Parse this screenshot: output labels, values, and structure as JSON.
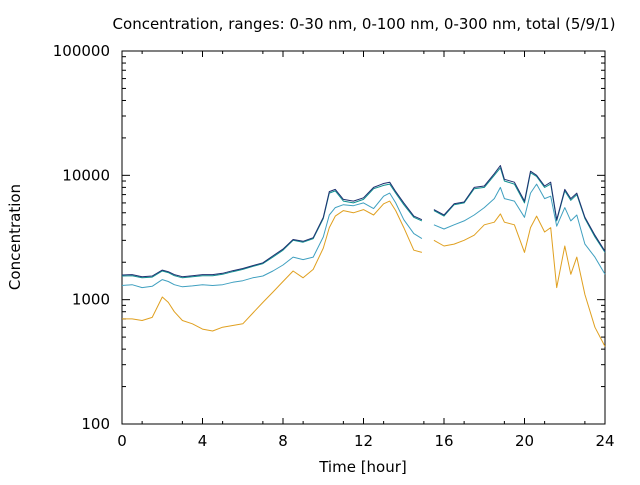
{
  "chart_data": {
    "type": "line",
    "title": "Concentration, ranges: 0-30 nm, 0-100 nm, 0-300 nm, total (5/9/1)",
    "xlabel": "Time [hour]",
    "ylabel": "Concentration",
    "xlim": [
      0,
      24
    ],
    "ylim": [
      100,
      100000
    ],
    "yscale": "log",
    "x_ticks": [
      0,
      4,
      8,
      12,
      16,
      20,
      24
    ],
    "x_tick_labels": [
      "0",
      "4",
      "8",
      "12",
      "16",
      "20",
      "24"
    ],
    "y_ticks": [
      100,
      1000,
      10000,
      100000
    ],
    "y_tick_labels": [
      "100",
      "1000",
      "10000",
      "100000"
    ],
    "grid": false,
    "legend": "none",
    "x": [
      0,
      0.5,
      1,
      1.5,
      2,
      2.3,
      2.6,
      3,
      3.5,
      4,
      4.5,
      5,
      5.5,
      6,
      6.5,
      7,
      7.5,
      8,
      8.5,
      9,
      9.5,
      10,
      10.3,
      10.6,
      11,
      11.5,
      12,
      12.5,
      13,
      13.3,
      13.6,
      14,
      14.5,
      14.9,
      15.0,
      15.1,
      15.5,
      16,
      16.5,
      17,
      17.5,
      18,
      18.5,
      18.8,
      19,
      19.5,
      20,
      20.3,
      20.6,
      21,
      21.3,
      21.6,
      22,
      22.3,
      22.6,
      23,
      23.5,
      24
    ],
    "series": [
      {
        "color": "#e0a020",
        "values": [
          700,
          700,
          680,
          720,
          1050,
          950,
          800,
          680,
          640,
          580,
          560,
          600,
          620,
          640,
          780,
          950,
          1150,
          1400,
          1700,
          1500,
          1750,
          2600,
          3800,
          4700,
          5200,
          5000,
          5300,
          4800,
          5900,
          6200,
          5200,
          3800,
          2500,
          2400,
          null,
          null,
          3000,
          2700,
          2800,
          3000,
          3300,
          4000,
          4200,
          4900,
          4200,
          4000,
          2400,
          3800,
          4700,
          3500,
          3800,
          1250,
          2700,
          1600,
          2200,
          1100,
          600,
          420
        ]
      },
      {
        "color": "#40a0c0",
        "values": [
          1300,
          1320,
          1250,
          1280,
          1450,
          1400,
          1320,
          1270,
          1290,
          1320,
          1300,
          1320,
          1380,
          1420,
          1500,
          1550,
          1700,
          1900,
          2200,
          2100,
          2200,
          3200,
          4800,
          5500,
          5800,
          5700,
          6000,
          5400,
          6800,
          7200,
          6000,
          4400,
          3400,
          3100,
          null,
          null,
          4000,
          3700,
          4000,
          4300,
          4800,
          5500,
          6500,
          8000,
          6500,
          6200,
          4600,
          7200,
          8500,
          6500,
          6800,
          3900,
          5500,
          4300,
          4800,
          2800,
          2200,
          1600
        ]
      },
      {
        "color": "#109090",
        "values": [
          1550,
          1560,
          1500,
          1520,
          1700,
          1650,
          1560,
          1500,
          1530,
          1560,
          1560,
          1600,
          1680,
          1750,
          1850,
          1950,
          2200,
          2500,
          3000,
          2900,
          3100,
          4500,
          7200,
          7500,
          6200,
          6000,
          6400,
          7800,
          8300,
          8500,
          7200,
          5800,
          4600,
          4300,
          null,
          null,
          5200,
          4700,
          5800,
          6000,
          7800,
          8000,
          10000,
          11500,
          9000,
          8500,
          6000,
          10500,
          9800,
          8000,
          8500,
          4300,
          7500,
          6300,
          7000,
          4500,
          3200,
          2400
        ]
      },
      {
        "color": "#203070",
        "values": [
          1580,
          1590,
          1530,
          1550,
          1730,
          1680,
          1590,
          1530,
          1560,
          1590,
          1590,
          1630,
          1710,
          1780,
          1880,
          1980,
          2250,
          2550,
          3050,
          2950,
          3150,
          4600,
          7400,
          7700,
          6400,
          6200,
          6600,
          8000,
          8600,
          8800,
          7400,
          6000,
          4700,
          4400,
          null,
          null,
          5300,
          4800,
          5900,
          6100,
          8000,
          8200,
          10300,
          12000,
          9300,
          8800,
          6200,
          10800,
          10000,
          8200,
          8800,
          4400,
          7700,
          6500,
          7200,
          4600,
          3300,
          2450
        ]
      }
    ]
  }
}
